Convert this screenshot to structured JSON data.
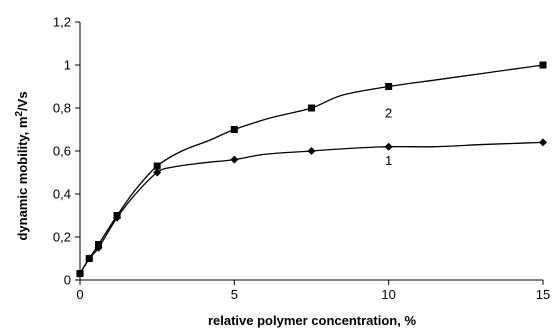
{
  "chart_data": {
    "type": "line",
    "xlabel": "relative polymer concentration, %",
    "ylabel": "dynamic mobility, m 2 /Vs",
    "ylabel_parts": {
      "before": "dynamic mobility, m",
      "sup": "2",
      "after": "/Vs"
    },
    "xlim": [
      0,
      15
    ],
    "ylim": [
      0,
      1.2
    ],
    "x_ticks": [
      "0",
      "5",
      "10",
      "15"
    ],
    "x_tick_values": [
      0,
      5,
      10,
      15
    ],
    "y_ticks": [
      "0",
      "0,2",
      "0,4",
      "0,6",
      "0,8",
      "1",
      "1,2"
    ],
    "y_tick_values": [
      0,
      0.2,
      0.4,
      0.6,
      0.8,
      1.0,
      1.2
    ],
    "grid": false,
    "series": [
      {
        "name": "1",
        "marker": "diamond",
        "x": [
          0,
          0.3,
          0.6,
          1.2,
          2.5,
          5,
          7.5,
          10,
          15
        ],
        "y": [
          0.03,
          0.1,
          0.15,
          0.29,
          0.5,
          0.56,
          0.6,
          0.62,
          0.64
        ],
        "curve_x": [
          0,
          0.3,
          0.6,
          1.2,
          1.8,
          2.5,
          3.0,
          4.0,
          5,
          6.0,
          7.5,
          8.5,
          10,
          11.5,
          13,
          14,
          15
        ],
        "curve_y": [
          0.03,
          0.1,
          0.15,
          0.29,
          0.4,
          0.5,
          0.525,
          0.545,
          0.56,
          0.585,
          0.6,
          0.61,
          0.62,
          0.62,
          0.63,
          0.635,
          0.64
        ],
        "label_at": [
          10,
          0.535
        ]
      },
      {
        "name": "2",
        "marker": "square",
        "x": [
          0,
          0.3,
          0.6,
          1.2,
          2.5,
          5,
          7.5,
          10,
          15
        ],
        "y": [
          0.03,
          0.1,
          0.165,
          0.3,
          0.53,
          0.7,
          0.8,
          0.9,
          1.0
        ],
        "curve_x": [
          0,
          0.3,
          0.6,
          1.2,
          1.8,
          2.5,
          3.3,
          4.2,
          5,
          6.2,
          7.5,
          8.5,
          10,
          11.5,
          13,
          14,
          15
        ],
        "curve_y": [
          0.03,
          0.1,
          0.165,
          0.3,
          0.42,
          0.53,
          0.6,
          0.65,
          0.7,
          0.755,
          0.8,
          0.86,
          0.9,
          0.93,
          0.96,
          0.98,
          1.0
        ],
        "label_at": [
          10,
          0.755
        ]
      }
    ]
  }
}
